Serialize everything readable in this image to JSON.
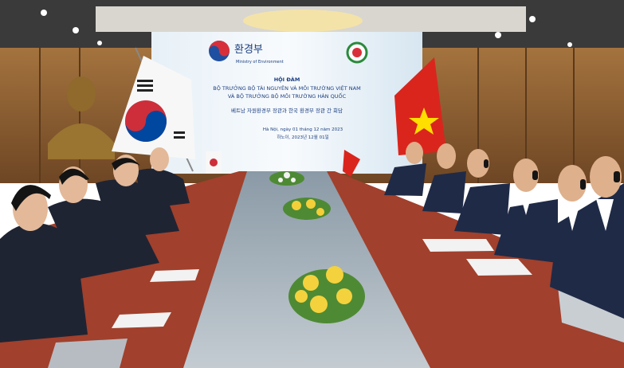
{
  "screen": {
    "logo_text": "환경부",
    "logo_subtext": "Ministry of Environment",
    "heading": "HỘI ĐÀM",
    "line_1": "BỘ TRƯỞNG BỘ TÀI NGUYÊN VÀ MÔI TRƯỜNG VIỆT NAM",
    "line_2": "VÀ BỘ TRƯỞNG BỘ MÔI TRƯỜNG HÀN QUỐC",
    "line_korean": "베트남 자원환경부 장관과 한국 환경부 장관 간 회담",
    "date_vi": "Hà Nội, ngày 01 tháng 12 năm 2023",
    "date_ko": "하노이, 2023년 12월 01일"
  }
}
